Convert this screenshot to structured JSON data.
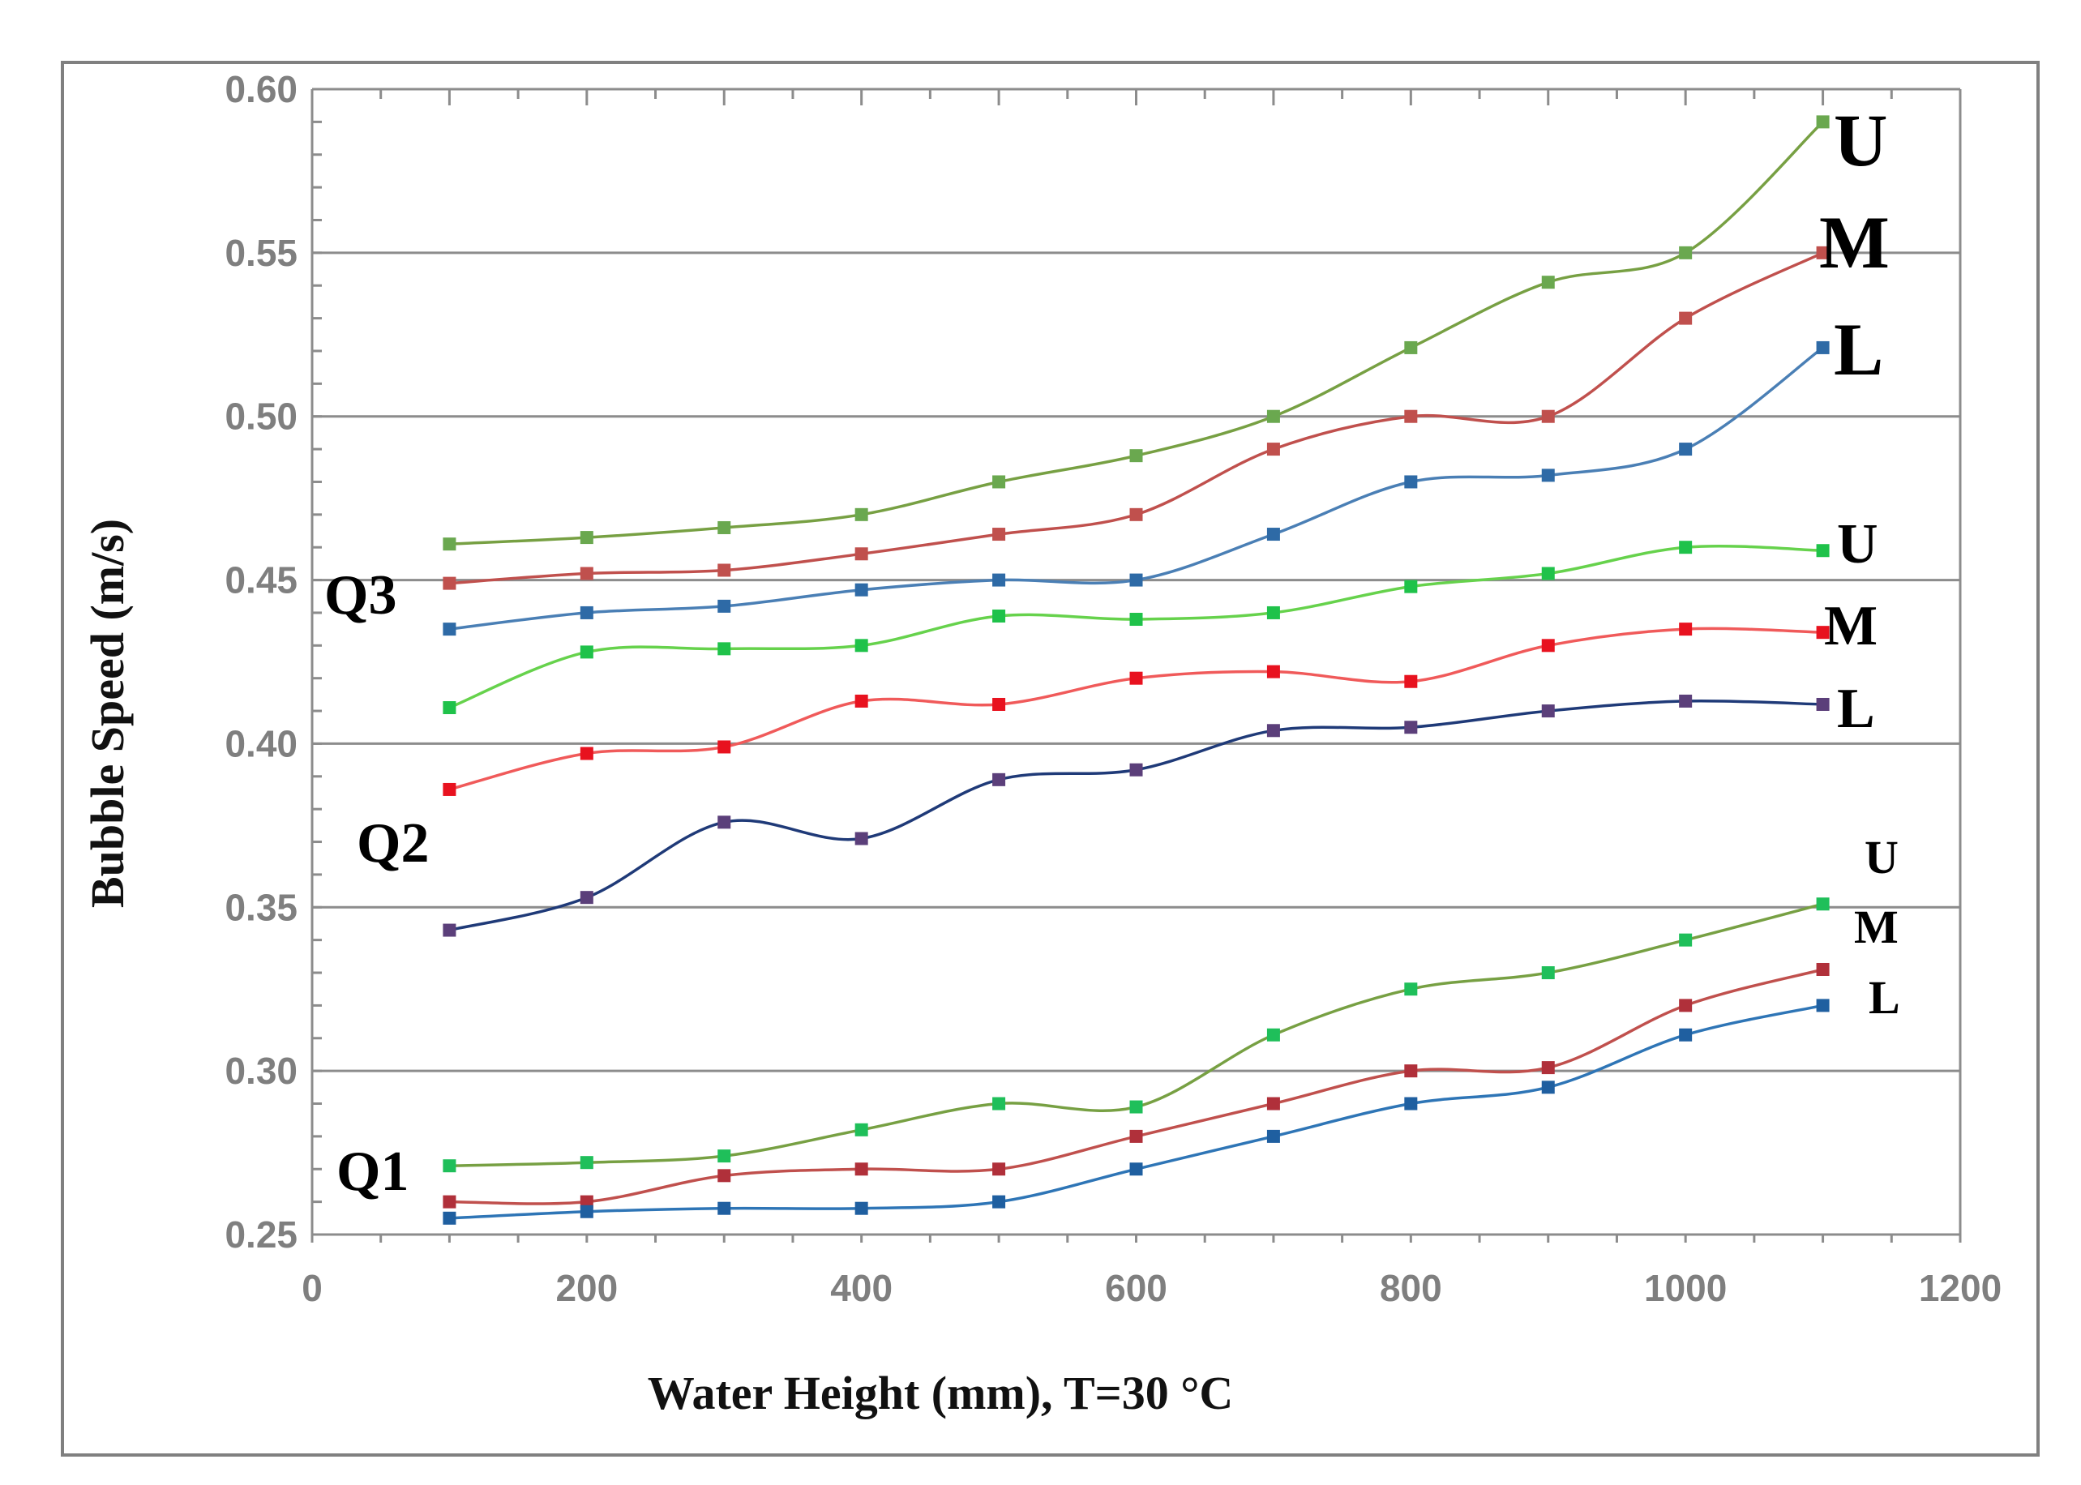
{
  "chart_data": {
    "type": "line",
    "title": "",
    "xlabel": "Water Height (mm),  T=30 °C",
    "ylabel": "Bubble  Speed (m/s)",
    "xlim": [
      0,
      1200
    ],
    "ylim": [
      0.25,
      0.6
    ],
    "xticks": [
      0,
      200,
      400,
      600,
      800,
      1000,
      1200
    ],
    "xtick_labels": [
      "0",
      "200",
      "400",
      "600",
      "800",
      "1000",
      "1200"
    ],
    "yticks": [
      0.25,
      0.3,
      0.35,
      0.4,
      0.45,
      0.5,
      0.55,
      0.6
    ],
    "ytick_labels": [
      "0.25",
      "0.30",
      "0.35",
      "0.40",
      "0.45",
      "0.50",
      "0.55",
      "0.60"
    ],
    "grid": "horizontal",
    "x": [
      100,
      200,
      300,
      400,
      500,
      600,
      700,
      800,
      900,
      1000,
      1100
    ],
    "groups": [
      {
        "label": "Q3",
        "series": [
          {
            "name": "U",
            "line_color": "#77a043",
            "marker_color": "#6aa84f",
            "values": [
              0.461,
              0.463,
              0.466,
              0.47,
              0.48,
              0.488,
              0.5,
              0.521,
              0.541,
              0.55,
              0.59
            ]
          },
          {
            "name": "M",
            "line_color": "#c0504d",
            "marker_color": "#c0504d",
            "values": [
              0.449,
              0.452,
              0.453,
              0.458,
              0.464,
              0.47,
              0.49,
              0.5,
              0.5,
              0.53,
              0.55
            ]
          },
          {
            "name": "L",
            "line_color": "#4a7fb5",
            "marker_color": "#2e6aa6",
            "values": [
              0.435,
              0.44,
              0.442,
              0.447,
              0.45,
              0.45,
              0.464,
              0.48,
              0.482,
              0.49,
              0.521
            ]
          }
        ]
      },
      {
        "label": "Q2",
        "series": [
          {
            "name": "U",
            "line_color": "#66d24c",
            "marker_color": "#1fc24a",
            "values": [
              0.411,
              0.428,
              0.429,
              0.43,
              0.439,
              0.438,
              0.44,
              0.448,
              0.452,
              0.46,
              0.459
            ]
          },
          {
            "name": "M",
            "line_color": "#f05a5a",
            "marker_color": "#e8121f",
            "values": [
              0.386,
              0.397,
              0.399,
              0.413,
              0.412,
              0.42,
              0.422,
              0.419,
              0.43,
              0.435,
              0.434
            ]
          },
          {
            "name": "L",
            "line_color": "#1f3a78",
            "marker_color": "#5b3f7a",
            "values": [
              0.343,
              0.353,
              0.376,
              0.371,
              0.389,
              0.392,
              0.404,
              0.405,
              0.41,
              0.413,
              0.412
            ]
          }
        ]
      },
      {
        "label": "Q1",
        "series": [
          {
            "name": "U",
            "line_color": "#77a043",
            "marker_color": "#1fbf5a",
            "values": [
              0.271,
              0.272,
              0.274,
              0.282,
              0.29,
              0.289,
              0.311,
              0.325,
              0.33,
              0.34,
              0.351
            ]
          },
          {
            "name": "M",
            "line_color": "#c0504d",
            "marker_color": "#b0303a",
            "values": [
              0.26,
              0.26,
              0.268,
              0.27,
              0.27,
              0.28,
              0.29,
              0.3,
              0.301,
              0.32,
              0.331
            ]
          },
          {
            "name": "L",
            "line_color": "#2e75b6",
            "marker_color": "#1f5fa0",
            "values": [
              0.255,
              0.257,
              0.258,
              0.258,
              0.26,
              0.27,
              0.28,
              0.29,
              0.295,
              0.311,
              0.32
            ]
          }
        ]
      }
    ]
  }
}
